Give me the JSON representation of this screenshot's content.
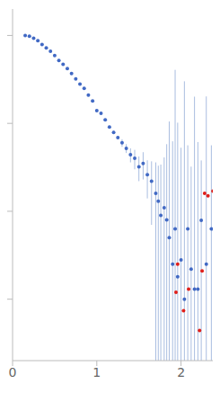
{
  "chart_data": {
    "type": "scatter",
    "log": "y",
    "tick_labels": "x",
    "xlim": [
      0,
      2.42
    ],
    "xticks": [
      0,
      1,
      2
    ],
    "ylim": [
      0.0002,
      2
    ],
    "yticks": [
      0.001,
      0.01,
      0.1,
      1
    ],
    "grid": false,
    "series": [
      {
        "color": "#4169c4",
        "marker": "circle",
        "x": [
          0.15,
          0.2,
          0.25,
          0.3,
          0.35,
          0.4,
          0.45,
          0.5,
          0.55,
          0.6,
          0.65,
          0.7,
          0.75,
          0.8,
          0.85,
          0.9,
          0.95,
          1.0,
          1.05,
          1.1,
          1.15,
          1.2,
          1.25,
          1.3,
          1.35,
          1.4,
          1.45,
          1.5,
          1.55,
          1.6,
          1.65,
          1.7,
          1.73,
          1.76,
          1.8,
          1.83,
          1.86,
          1.9,
          1.93,
          1.96,
          2.0,
          2.04,
          2.08,
          2.12,
          2.16,
          2.2,
          2.24,
          2.3,
          2.36
        ],
        "values": [
          1.0,
          0.98,
          0.93,
          0.87,
          0.79,
          0.72,
          0.66,
          0.59,
          0.52,
          0.47,
          0.42,
          0.37,
          0.32,
          0.28,
          0.25,
          0.21,
          0.18,
          0.14,
          0.13,
          0.11,
          0.091,
          0.079,
          0.069,
          0.06,
          0.052,
          0.044,
          0.04,
          0.032,
          0.035,
          0.026,
          0.022,
          0.016,
          0.013,
          0.009,
          0.011,
          0.008,
          0.005,
          0.0025,
          0.0063,
          0.0018,
          0.0028,
          0.001,
          0.0063,
          0.0022,
          0.0013,
          0.0013,
          0.0079,
          0.0025,
          0.0063
        ],
        "errors": [
          0.003,
          0.003,
          0.003,
          0.003,
          0.003,
          0.003,
          0.003,
          0.003,
          0.003,
          0.003,
          0.003,
          0.003,
          0.003,
          0.003,
          0.003,
          0.003,
          0.003,
          0.003,
          0.003,
          0.003,
          0.003,
          0.003,
          0.003,
          0.006,
          0.006,
          0.008,
          0.01,
          0.01,
          0.012,
          0.012,
          0.015,
          0.02,
          0.02,
          0.025,
          0.03,
          0.05,
          0.1,
          0.06,
          0.4,
          0.1,
          0.05,
          0.3,
          0.05,
          0.03,
          0.2,
          0.06,
          0.03,
          0.2,
          0.05
        ]
      },
      {
        "color": "#e0201b",
        "marker": "circle",
        "x": [
          1.94,
          1.96,
          2.03,
          2.09,
          2.22,
          2.25,
          2.28,
          2.32,
          2.38
        ],
        "values": [
          0.0012,
          0.0025,
          0.00074,
          0.0013,
          0.00044,
          0.0021,
          0.016,
          0.015,
          0.017
        ]
      }
    ]
  }
}
